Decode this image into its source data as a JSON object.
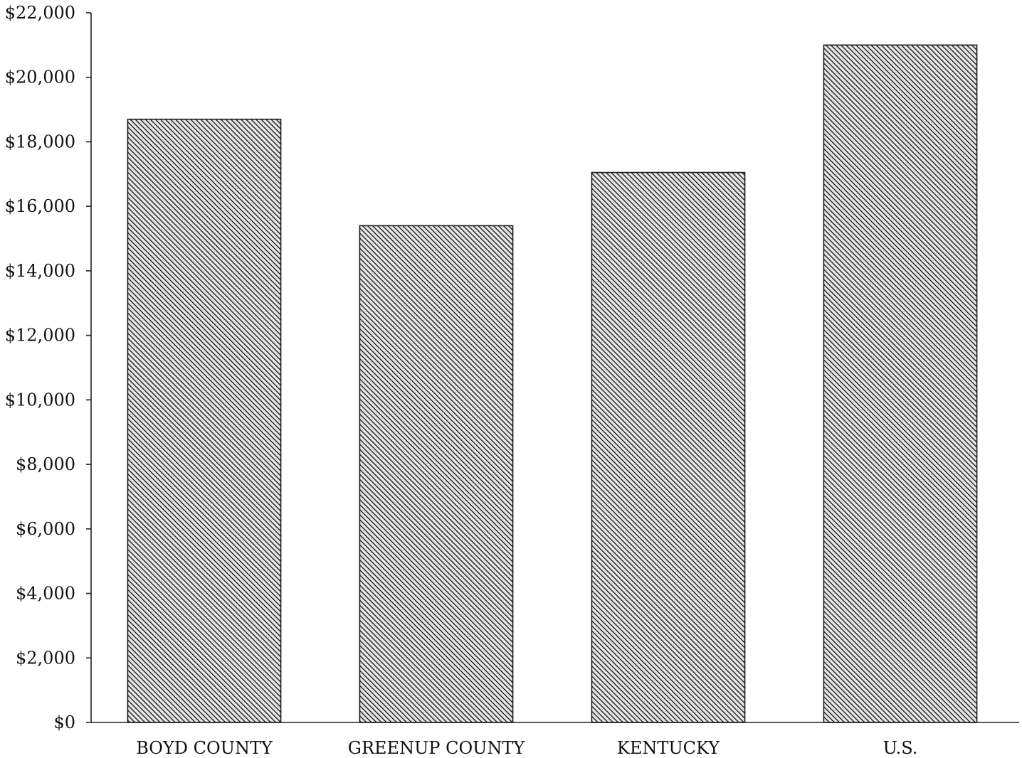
{
  "chart_data": {
    "type": "bar",
    "categories": [
      "BOYD COUNTY",
      "GREENUP COUNTY",
      "KENTUCKY",
      "U.S."
    ],
    "values": [
      18700,
      15400,
      17050,
      21000
    ],
    "ylim": [
      0,
      22000
    ],
    "y_ticks": [
      {
        "value": 0,
        "label": "$0"
      },
      {
        "value": 2000,
        "label": "$2,000"
      },
      {
        "value": 4000,
        "label": "$4,000"
      },
      {
        "value": 6000,
        "label": "$6,000"
      },
      {
        "value": 8000,
        "label": "$8,000"
      },
      {
        "value": 10000,
        "label": "$10,000"
      },
      {
        "value": 12000,
        "label": "$12,000"
      },
      {
        "value": 14000,
        "label": "$14,000"
      },
      {
        "value": 16000,
        "label": "$16,000"
      },
      {
        "value": 18000,
        "label": "$18,000"
      },
      {
        "value": 20000,
        "label": "$20,000"
      },
      {
        "value": 22000,
        "label": "$22,000"
      }
    ],
    "title": "",
    "xlabel": "",
    "ylabel": "",
    "grid": false,
    "legend": "none",
    "bar_fill": "diagonal-hatch",
    "colors": {
      "bar_ink": "#1a1a1a",
      "background": "#ffffff"
    }
  }
}
